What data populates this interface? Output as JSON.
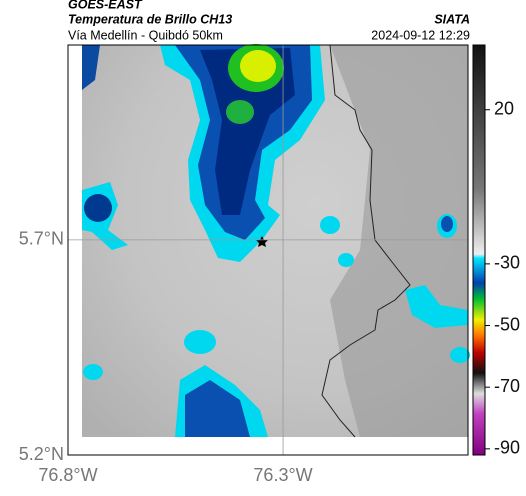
{
  "header": {
    "title": "GOES-EAST",
    "subtitle": "Temperatura de Brillo CH13",
    "region": "Vía Medellín - Quibdó 50km",
    "source": "SIATA",
    "datetime": "2024-09-12 12:29"
  },
  "map": {
    "xlim": [
      -76.8,
      -75.87
    ],
    "ylim": [
      5.2,
      6.153
    ],
    "xticks": [
      {
        "value": -76.8,
        "label": "76.8°W"
      },
      {
        "value": -76.3,
        "label": "76.3°W"
      }
    ],
    "yticks": [
      {
        "value": 5.2,
        "label": "5.2°N"
      },
      {
        "value": 5.7,
        "label": "5.7°N"
      }
    ]
  },
  "colorbar": {
    "lim": [
      -92,
      41
    ],
    "ticks": [
      20,
      -30,
      -50,
      -70,
      -90
    ]
  }
}
